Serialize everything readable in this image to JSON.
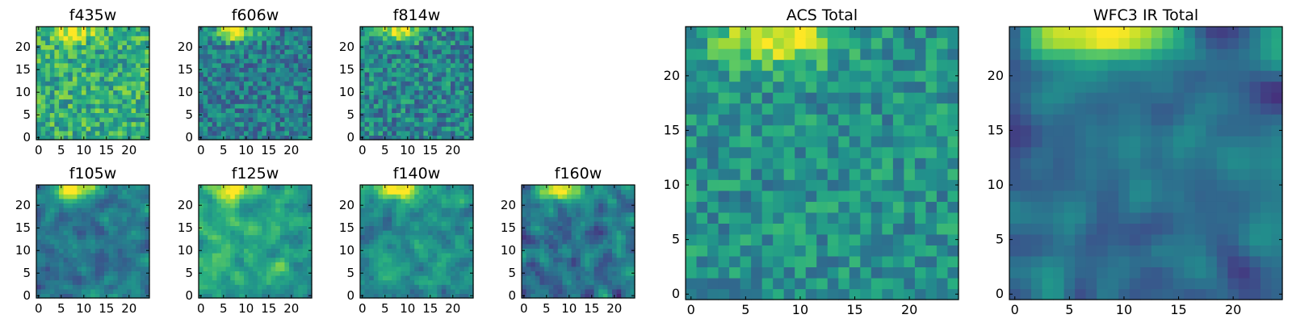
{
  "figure": {
    "colormap": "viridis",
    "colormap_stops": [
      "#440154",
      "#472d7b",
      "#3b528b",
      "#2c728e",
      "#21918c",
      "#28ae80",
      "#5ec962",
      "#addc30",
      "#fde725"
    ]
  },
  "chart_data": [
    {
      "type": "heatmap",
      "title": "f435w",
      "grid": [
        25,
        25
      ],
      "xlim": [
        0,
        24
      ],
      "ylim": [
        0,
        24
      ],
      "xticks": [
        "0",
        "5",
        "10",
        "15",
        "20"
      ],
      "yticks": [
        "0",
        "5",
        "10",
        "15",
        "20"
      ],
      "description_values": "noisy, mean level high (yellow-green)",
      "seed": 11,
      "base": 0.62,
      "noise": 0.22,
      "smooth": 0,
      "peak": {
        "x": 8,
        "y": 23.5,
        "amp": 0.35,
        "sigma": 1.6
      }
    },
    {
      "type": "heatmap",
      "title": "f606w",
      "grid": [
        25,
        25
      ],
      "xlim": [
        0,
        24
      ],
      "ylim": [
        0,
        24
      ],
      "xticks": [
        "0",
        "5",
        "10",
        "15",
        "20"
      ],
      "yticks": [
        "0",
        "5",
        "10",
        "15",
        "20"
      ],
      "seed": 23,
      "base": 0.42,
      "noise": 0.2,
      "smooth": 0,
      "peak": {
        "x": 8,
        "y": 23.5,
        "amp": 0.6,
        "sigma": 1.5
      }
    },
    {
      "type": "heatmap",
      "title": "f814w",
      "grid": [
        25,
        25
      ],
      "xlim": [
        0,
        24
      ],
      "ylim": [
        0,
        24
      ],
      "xticks": [
        "0",
        "5",
        "10",
        "15",
        "20"
      ],
      "yticks": [
        "0",
        "5",
        "10",
        "15",
        "20"
      ],
      "seed": 37,
      "base": 0.45,
      "noise": 0.22,
      "smooth": 0,
      "peak": {
        "x": 8,
        "y": 23.5,
        "amp": 0.6,
        "sigma": 1.5
      }
    },
    {
      "type": "heatmap",
      "title": "f105w",
      "grid": [
        25,
        25
      ],
      "xlim": [
        0,
        24
      ],
      "ylim": [
        0,
        24
      ],
      "xticks": [
        "0",
        "5",
        "10",
        "15",
        "20"
      ],
      "yticks": [
        "0",
        "5",
        "10",
        "15",
        "20"
      ],
      "seed": 41,
      "base": 0.4,
      "noise": 0.2,
      "smooth": 1,
      "peak": {
        "x": 8,
        "y": 23.5,
        "amp": 0.65,
        "sigma": 1.6
      }
    },
    {
      "type": "heatmap",
      "title": "f125w",
      "grid": [
        25,
        25
      ],
      "xlim": [
        0,
        24
      ],
      "ylim": [
        0,
        24
      ],
      "xticks": [
        "0",
        "5",
        "10",
        "15",
        "20"
      ],
      "yticks": [
        "0",
        "5",
        "10",
        "15",
        "20"
      ],
      "seed": 53,
      "base": 0.58,
      "noise": 0.2,
      "smooth": 1,
      "peak": {
        "x": 8,
        "y": 23.5,
        "amp": 0.45,
        "sigma": 1.8
      }
    },
    {
      "type": "heatmap",
      "title": "f140w",
      "grid": [
        25,
        25
      ],
      "xlim": [
        0,
        24
      ],
      "ylim": [
        0,
        24
      ],
      "xticks": [
        "0",
        "5",
        "10",
        "15",
        "20"
      ],
      "yticks": [
        "0",
        "5",
        "10",
        "15",
        "20"
      ],
      "seed": 67,
      "base": 0.5,
      "noise": 0.2,
      "smooth": 1,
      "peak": {
        "x": 8,
        "y": 23.5,
        "amp": 0.55,
        "sigma": 1.6
      }
    },
    {
      "type": "heatmap",
      "title": "f160w",
      "grid": [
        25,
        25
      ],
      "xlim": [
        0,
        24
      ],
      "ylim": [
        0,
        24
      ],
      "xticks": [
        "0",
        "5",
        "10",
        "15",
        "20"
      ],
      "yticks": [
        "0",
        "5",
        "10",
        "15",
        "20"
      ],
      "seed": 79,
      "base": 0.4,
      "noise": 0.24,
      "smooth": 1,
      "peak": {
        "x": 8,
        "y": 23.5,
        "amp": 0.65,
        "sigma": 1.6
      }
    },
    {
      "type": "heatmap",
      "title": "ACS Total",
      "grid": [
        25,
        25
      ],
      "xlim": [
        0,
        24
      ],
      "ylim": [
        0,
        24
      ],
      "xticks": [
        "0",
        "5",
        "10",
        "15",
        "20"
      ],
      "yticks": [
        "0",
        "5",
        "10",
        "15",
        "20"
      ],
      "seed": 97,
      "base": 0.5,
      "noise": 0.17,
      "smooth": 0,
      "peak": {
        "x": 8,
        "y": 23.5,
        "amp": 0.55,
        "sigma": 1.8
      }
    },
    {
      "type": "heatmap",
      "title": "WFC3 IR Total",
      "grid": [
        25,
        25
      ],
      "xlim": [
        0,
        24
      ],
      "ylim": [
        0,
        24
      ],
      "xticks": [
        "0",
        "5",
        "10",
        "15",
        "20"
      ],
      "yticks": [
        "0",
        "5",
        "10",
        "15",
        "20"
      ],
      "seed": 113,
      "base": 0.36,
      "noise": 0.16,
      "smooth": 2,
      "peak": {
        "x": 8,
        "y": 23.5,
        "amp": 0.7,
        "sigma": 1.9
      }
    }
  ]
}
